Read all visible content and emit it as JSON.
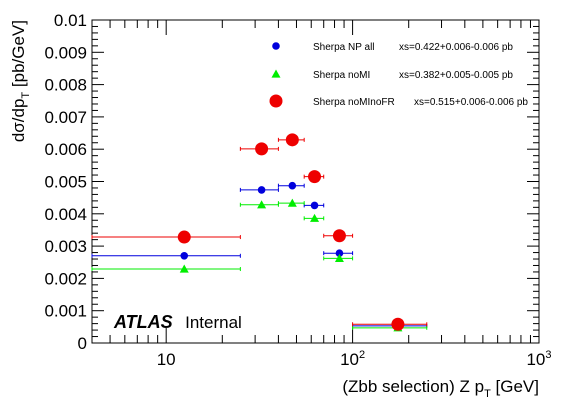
{
  "chart_data": {
    "type": "scatter",
    "x_scale": "log",
    "xlim": [
      4,
      1000
    ],
    "ylim": [
      0,
      0.01
    ],
    "grid": false,
    "legend_position": "top-right",
    "ylabel_parts": {
      "main": "dσ/dp",
      "sub": "T",
      "unit": " [pb/GeV]"
    },
    "xlabel_parts": {
      "main": "(Zbb selection) Z p",
      "sub": "T",
      "unit": " [GeV]"
    },
    "y_ticks": [
      {
        "value": 0,
        "label": "0"
      },
      {
        "value": 0.001,
        "label": "0.001"
      },
      {
        "value": 0.002,
        "label": "0.002"
      },
      {
        "value": 0.003,
        "label": "0.003"
      },
      {
        "value": 0.004,
        "label": "0.004"
      },
      {
        "value": 0.005,
        "label": "0.005"
      },
      {
        "value": 0.006,
        "label": "0.006"
      },
      {
        "value": 0.007,
        "label": "0.007"
      },
      {
        "value": 0.008,
        "label": "0.008"
      },
      {
        "value": 0.009,
        "label": "0.009"
      },
      {
        "value": 0.01,
        "label": "0.01"
      }
    ],
    "x_ticks": [
      {
        "value": 10,
        "label": "10"
      },
      {
        "value": 100,
        "label": "10",
        "sup": "2"
      },
      {
        "value": 1000,
        "label": "10",
        "sup": "3"
      }
    ],
    "annotation": {
      "bold": "ATLAS",
      "normal": "Internal"
    },
    "series": [
      {
        "name": "Sherpa NP all",
        "xs": "xs=0.422+0.006-0.006 pb",
        "color": "#0000dd",
        "marker": "circle",
        "points": [
          {
            "x": 12.5,
            "xlo": 4,
            "xhi": 25,
            "y": 0.0027
          },
          {
            "x": 32.5,
            "xlo": 25,
            "xhi": 40,
            "y": 0.00474
          },
          {
            "x": 47.5,
            "xlo": 40,
            "xhi": 55,
            "y": 0.00487
          },
          {
            "x": 62.5,
            "xlo": 55,
            "xhi": 70,
            "y": 0.00426
          },
          {
            "x": 85,
            "xlo": 70,
            "xhi": 100,
            "y": 0.00278
          },
          {
            "x": 175,
            "xlo": 100,
            "xhi": 250,
            "y": 0.00053
          }
        ]
      },
      {
        "name": "Sherpa noMI",
        "xs": "xs=0.382+0.005-0.005 pb",
        "color": "#00ee00",
        "marker": "triangle",
        "points": [
          {
            "x": 12.5,
            "xlo": 4,
            "xhi": 25,
            "y": 0.00229
          },
          {
            "x": 32.5,
            "xlo": 25,
            "xhi": 40,
            "y": 0.00428
          },
          {
            "x": 47.5,
            "xlo": 40,
            "xhi": 55,
            "y": 0.00433
          },
          {
            "x": 62.5,
            "xlo": 55,
            "xhi": 70,
            "y": 0.00386
          },
          {
            "x": 85,
            "xlo": 70,
            "xhi": 100,
            "y": 0.00262
          },
          {
            "x": 175,
            "xlo": 100,
            "xhi": 250,
            "y": 0.00047
          }
        ]
      },
      {
        "name": "Sherpa noMInoFR",
        "xs": "xs=0.515+0.006-0.006 pb",
        "color": "#ee0000",
        "marker": "circle-large",
        "points": [
          {
            "x": 12.5,
            "xlo": 4,
            "xhi": 25,
            "y": 0.00328
          },
          {
            "x": 32.5,
            "xlo": 25,
            "xhi": 40,
            "y": 0.00601
          },
          {
            "x": 47.5,
            "xlo": 40,
            "xhi": 55,
            "y": 0.00629
          },
          {
            "x": 62.5,
            "xlo": 55,
            "xhi": 70,
            "y": 0.00515
          },
          {
            "x": 85,
            "xlo": 70,
            "xhi": 100,
            "y": 0.00332
          },
          {
            "x": 175,
            "xlo": 100,
            "xhi": 250,
            "y": 0.00058
          }
        ]
      }
    ]
  }
}
